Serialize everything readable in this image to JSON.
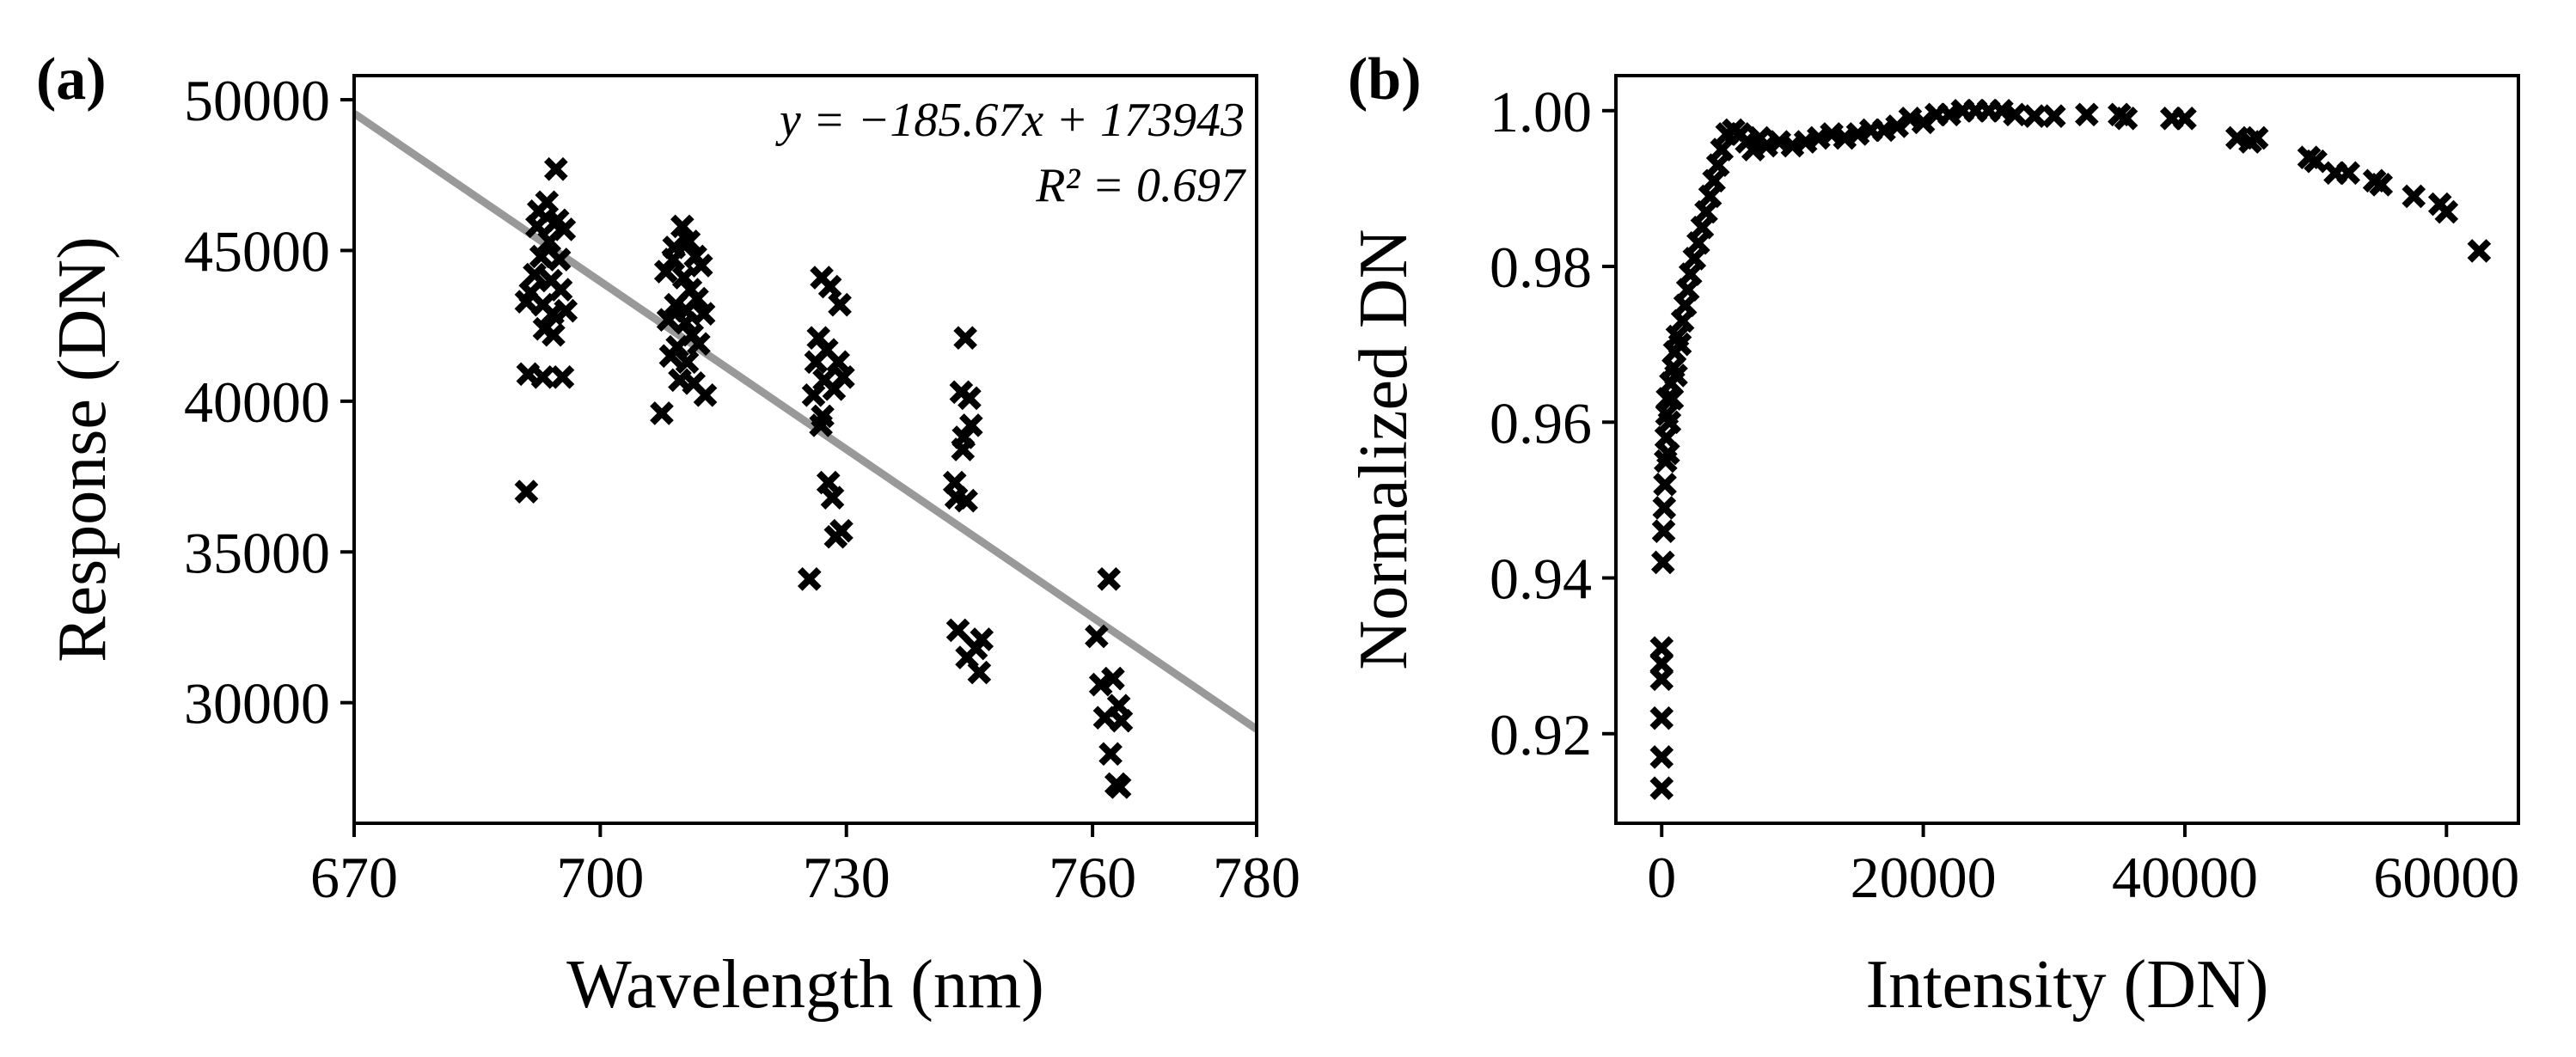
{
  "chart_data": [
    {
      "type": "scatter",
      "panel_label": "(a)",
      "xlabel": "Wavelength (nm)",
      "ylabel": "Response (DN)",
      "xlim": [
        670,
        780
      ],
      "ylim": [
        26000,
        50800
      ],
      "xticks": [
        "670",
        "700",
        "730",
        "760",
        "780"
      ],
      "yticks": [
        "30000",
        "35000",
        "40000",
        "45000",
        "50000"
      ],
      "grid": false,
      "fit_line": {
        "slope": -185.67,
        "intercept": 173943,
        "color": "#999999",
        "equation": "y = −185.67x + 173943",
        "r2": "R² = 0.697"
      },
      "marker": "x",
      "marker_color": "#000000",
      "points": [
        {
          "x": 691.0,
          "y": 37000
        },
        {
          "x": 691.2,
          "y": 40900
        },
        {
          "x": 691.0,
          "y": 43300
        },
        {
          "x": 691.5,
          "y": 43600
        },
        {
          "x": 692.0,
          "y": 44200
        },
        {
          "x": 692.3,
          "y": 45800
        },
        {
          "x": 692.5,
          "y": 46300
        },
        {
          "x": 692.8,
          "y": 44800
        },
        {
          "x": 693.0,
          "y": 43200
        },
        {
          "x": 693.2,
          "y": 42400
        },
        {
          "x": 693.0,
          "y": 40800
        },
        {
          "x": 693.5,
          "y": 46600
        },
        {
          "x": 693.8,
          "y": 45300
        },
        {
          "x": 694.0,
          "y": 44000
        },
        {
          "x": 694.2,
          "y": 42900
        },
        {
          "x": 694.4,
          "y": 45900
        },
        {
          "x": 694.6,
          "y": 47700
        },
        {
          "x": 694.8,
          "y": 46000
        },
        {
          "x": 695.0,
          "y": 44700
        },
        {
          "x": 695.2,
          "y": 43700
        },
        {
          "x": 695.4,
          "y": 40800
        },
        {
          "x": 695.6,
          "y": 45700
        },
        {
          "x": 695.8,
          "y": 43000
        },
        {
          "x": 694.3,
          "y": 42200
        },
        {
          "x": 707.5,
          "y": 39600
        },
        {
          "x": 708.0,
          "y": 44300
        },
        {
          "x": 708.3,
          "y": 42700
        },
        {
          "x": 708.6,
          "y": 41500
        },
        {
          "x": 708.9,
          "y": 44700
        },
        {
          "x": 709.2,
          "y": 43200
        },
        {
          "x": 709.4,
          "y": 41800
        },
        {
          "x": 709.7,
          "y": 40700
        },
        {
          "x": 710.0,
          "y": 45800
        },
        {
          "x": 710.2,
          "y": 44100
        },
        {
          "x": 710.4,
          "y": 42600
        },
        {
          "x": 710.6,
          "y": 41300
        },
        {
          "x": 710.8,
          "y": 45300
        },
        {
          "x": 711.0,
          "y": 43700
        },
        {
          "x": 711.2,
          "y": 42200
        },
        {
          "x": 711.4,
          "y": 40600
        },
        {
          "x": 711.6,
          "y": 44800
        },
        {
          "x": 711.8,
          "y": 43400
        },
        {
          "x": 712.0,
          "y": 41900
        },
        {
          "x": 712.3,
          "y": 44500
        },
        {
          "x": 712.6,
          "y": 42900
        },
        {
          "x": 712.8,
          "y": 40200
        },
        {
          "x": 709.0,
          "y": 45100
        },
        {
          "x": 710.5,
          "y": 43000
        },
        {
          "x": 725.5,
          "y": 34100
        },
        {
          "x": 726.0,
          "y": 40200
        },
        {
          "x": 726.3,
          "y": 41300
        },
        {
          "x": 726.6,
          "y": 42100
        },
        {
          "x": 726.9,
          "y": 39200
        },
        {
          "x": 727.0,
          "y": 44100
        },
        {
          "x": 727.3,
          "y": 40700
        },
        {
          "x": 727.6,
          "y": 41700
        },
        {
          "x": 727.8,
          "y": 37300
        },
        {
          "x": 728.0,
          "y": 43800
        },
        {
          "x": 728.3,
          "y": 36800
        },
        {
          "x": 728.5,
          "y": 40400
        },
        {
          "x": 728.7,
          "y": 35500
        },
        {
          "x": 729.0,
          "y": 41300
        },
        {
          "x": 729.2,
          "y": 43200
        },
        {
          "x": 729.4,
          "y": 35700
        },
        {
          "x": 729.6,
          "y": 40800
        },
        {
          "x": 727.1,
          "y": 39500
        },
        {
          "x": 743.2,
          "y": 37300
        },
        {
          "x": 743.4,
          "y": 36800
        },
        {
          "x": 743.6,
          "y": 32400
        },
        {
          "x": 744.0,
          "y": 40300
        },
        {
          "x": 744.3,
          "y": 38800
        },
        {
          "x": 744.5,
          "y": 42100
        },
        {
          "x": 744.7,
          "y": 31500
        },
        {
          "x": 745.0,
          "y": 40100
        },
        {
          "x": 745.2,
          "y": 39200
        },
        {
          "x": 744.6,
          "y": 36700
        },
        {
          "x": 745.8,
          "y": 31800
        },
        {
          "x": 746.2,
          "y": 31000
        },
        {
          "x": 746.5,
          "y": 32100
        },
        {
          "x": 744.2,
          "y": 38400
        },
        {
          "x": 760.5,
          "y": 32200
        },
        {
          "x": 761.0,
          "y": 30600
        },
        {
          "x": 761.5,
          "y": 29500
        },
        {
          "x": 762.0,
          "y": 34100
        },
        {
          "x": 762.2,
          "y": 28300
        },
        {
          "x": 762.5,
          "y": 30800
        },
        {
          "x": 762.9,
          "y": 27300
        },
        {
          "x": 763.2,
          "y": 29900
        },
        {
          "x": 763.5,
          "y": 29400
        },
        {
          "x": 763.3,
          "y": 27200
        }
      ]
    },
    {
      "type": "scatter",
      "panel_label": "(b)",
      "xlabel": "Intensity (DN)",
      "ylabel": "Normalized DN",
      "xlim": [
        -3500,
        65500
      ],
      "ylim": [
        0.9085,
        1.0045
      ],
      "xticks": [
        "0",
        "20000",
        "40000",
        "60000"
      ],
      "yticks": [
        "0.92",
        "0.94",
        "0.96",
        "0.98",
        "1.00"
      ],
      "grid": false,
      "marker": "x",
      "marker_color": "#000000",
      "points": [
        {
          "x": 0,
          "y": 0.913
        },
        {
          "x": 0,
          "y": 0.917
        },
        {
          "x": 0,
          "y": 0.922
        },
        {
          "x": 0,
          "y": 0.927
        },
        {
          "x": 0,
          "y": 0.929
        },
        {
          "x": 0,
          "y": 0.931
        },
        {
          "x": 100,
          "y": 0.942
        },
        {
          "x": 150,
          "y": 0.946
        },
        {
          "x": 200,
          "y": 0.949
        },
        {
          "x": 250,
          "y": 0.952
        },
        {
          "x": 300,
          "y": 0.955
        },
        {
          "x": 350,
          "y": 0.958
        },
        {
          "x": 400,
          "y": 0.961
        },
        {
          "x": 450,
          "y": 0.963
        },
        {
          "x": 500,
          "y": 0.956
        },
        {
          "x": 600,
          "y": 0.96
        },
        {
          "x": 700,
          "y": 0.965
        },
        {
          "x": 800,
          "y": 0.963
        },
        {
          "x": 900,
          "y": 0.967
        },
        {
          "x": 1000,
          "y": 0.969
        },
        {
          "x": 1100,
          "y": 0.966
        },
        {
          "x": 1200,
          "y": 0.971
        },
        {
          "x": 1400,
          "y": 0.97
        },
        {
          "x": 1600,
          "y": 0.973
        },
        {
          "x": 1800,
          "y": 0.975
        },
        {
          "x": 2000,
          "y": 0.977
        },
        {
          "x": 2200,
          "y": 0.979
        },
        {
          "x": 2500,
          "y": 0.981
        },
        {
          "x": 2800,
          "y": 0.983
        },
        {
          "x": 3100,
          "y": 0.985
        },
        {
          "x": 3400,
          "y": 0.987
        },
        {
          "x": 3700,
          "y": 0.989
        },
        {
          "x": 4000,
          "y": 0.991
        },
        {
          "x": 4300,
          "y": 0.993
        },
        {
          "x": 4600,
          "y": 0.995
        },
        {
          "x": 5000,
          "y": 0.997
        },
        {
          "x": 5500,
          "y": 0.9975
        },
        {
          "x": 6000,
          "y": 0.997
        },
        {
          "x": 6500,
          "y": 0.996
        },
        {
          "x": 7000,
          "y": 0.995
        },
        {
          "x": 7500,
          "y": 0.9965
        },
        {
          "x": 8000,
          "y": 0.9955
        },
        {
          "x": 9000,
          "y": 0.996
        },
        {
          "x": 10000,
          "y": 0.9955
        },
        {
          "x": 11000,
          "y": 0.996
        },
        {
          "x": 12000,
          "y": 0.9965
        },
        {
          "x": 13000,
          "y": 0.997
        },
        {
          "x": 14000,
          "y": 0.9965
        },
        {
          "x": 15000,
          "y": 0.997
        },
        {
          "x": 16000,
          "y": 0.9975
        },
        {
          "x": 17000,
          "y": 0.9975
        },
        {
          "x": 18000,
          "y": 0.998
        },
        {
          "x": 19000,
          "y": 0.999
        },
        {
          "x": 20000,
          "y": 0.9985
        },
        {
          "x": 21000,
          "y": 0.9995
        },
        {
          "x": 22000,
          "y": 0.9995
        },
        {
          "x": 23000,
          "y": 1.0
        },
        {
          "x": 24000,
          "y": 1.0
        },
        {
          "x": 25000,
          "y": 1.0
        },
        {
          "x": 26000,
          "y": 1.0
        },
        {
          "x": 27000,
          "y": 0.9995
        },
        {
          "x": 28500,
          "y": 0.9993
        },
        {
          "x": 30000,
          "y": 0.9993
        },
        {
          "x": 32500,
          "y": 0.9995
        },
        {
          "x": 35000,
          "y": 0.9995
        },
        {
          "x": 35500,
          "y": 0.999
        },
        {
          "x": 39000,
          "y": 0.999
        },
        {
          "x": 40000,
          "y": 0.999
        },
        {
          "x": 44000,
          "y": 0.9965
        },
        {
          "x": 45000,
          "y": 0.996
        },
        {
          "x": 45500,
          "y": 0.9965
        },
        {
          "x": 49500,
          "y": 0.994
        },
        {
          "x": 50000,
          "y": 0.9935
        },
        {
          "x": 51500,
          "y": 0.992
        },
        {
          "x": 52500,
          "y": 0.992
        },
        {
          "x": 54500,
          "y": 0.991
        },
        {
          "x": 55000,
          "y": 0.9905
        },
        {
          "x": 57500,
          "y": 0.989
        },
        {
          "x": 59500,
          "y": 0.988
        },
        {
          "x": 60000,
          "y": 0.987
        },
        {
          "x": 62500,
          "y": 0.982
        }
      ]
    }
  ]
}
